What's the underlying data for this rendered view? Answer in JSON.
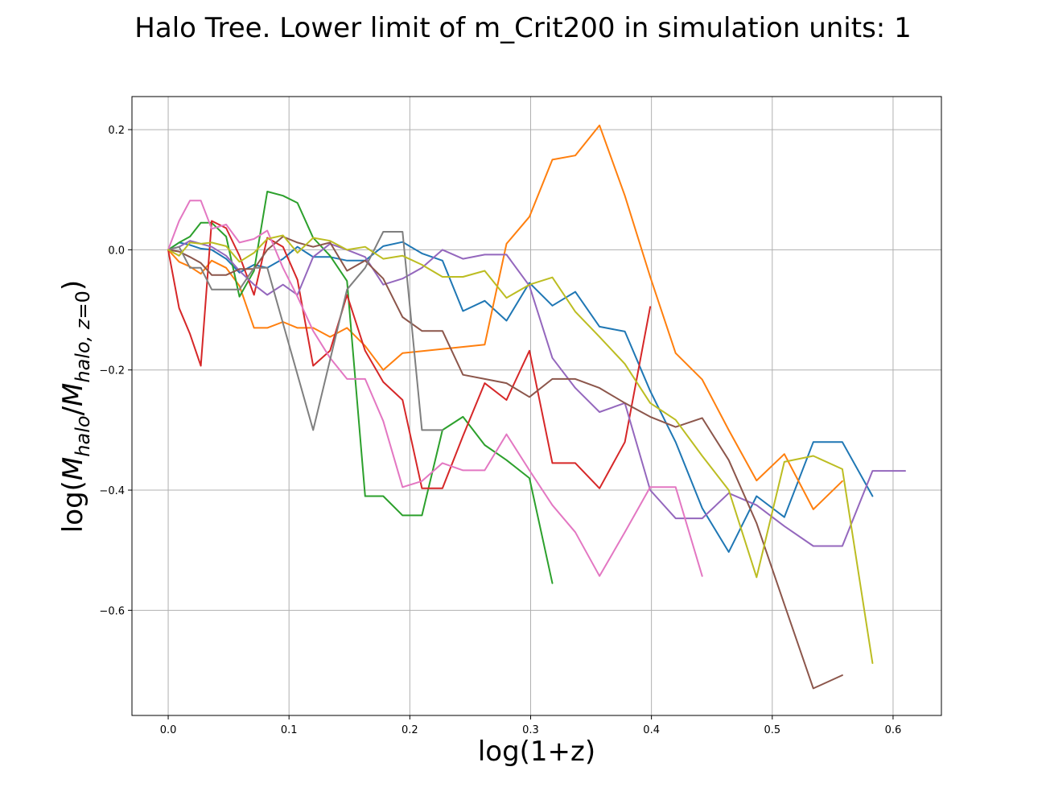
{
  "chart_data": {
    "type": "line",
    "title": "Halo Tree. Lower limit of m_Crit200 in simulation units: 1",
    "xlabel": "log(1+z)",
    "ylabel": "log(M_halo/M_halo,z=0)",
    "xlim": [
      -0.03,
      0.64
    ],
    "ylim": [
      -0.775,
      0.255
    ],
    "xticks": [
      0.0,
      0.1,
      0.2,
      0.3,
      0.4,
      0.5,
      0.6
    ],
    "xtick_labels": [
      "0.0",
      "0.1",
      "0.2",
      "0.3",
      "0.4",
      "0.5",
      "0.6"
    ],
    "yticks": [
      0.2,
      0.0,
      -0.2,
      -0.4,
      -0.6
    ],
    "ytick_labels": [
      "0.2",
      "0.0",
      "−0.2",
      "−0.4",
      "−0.6"
    ],
    "grid": true,
    "legend": "none",
    "series": [
      {
        "color": "#1f77b4",
        "points": [
          [
            0,
            0
          ],
          [
            0.009,
            0.012
          ],
          [
            0.018,
            0.008
          ],
          [
            0.027,
            0.002
          ],
          [
            0.036,
            0.0
          ],
          [
            0.048,
            -0.015
          ],
          [
            0.059,
            -0.038
          ],
          [
            0.071,
            -0.025
          ],
          [
            0.082,
            -0.03
          ],
          [
            0.095,
            -0.015
          ],
          [
            0.107,
            0.005
          ],
          [
            0.12,
            -0.012
          ],
          [
            0.134,
            -0.012
          ],
          [
            0.148,
            -0.018
          ],
          [
            0.163,
            -0.018
          ],
          [
            0.178,
            0.006
          ],
          [
            0.194,
            0.013
          ],
          [
            0.21,
            -0.006
          ],
          [
            0.227,
            -0.018
          ],
          [
            0.244,
            -0.102
          ],
          [
            0.262,
            -0.085
          ],
          [
            0.28,
            -0.118
          ],
          [
            0.299,
            -0.055
          ],
          [
            0.318,
            -0.093
          ],
          [
            0.337,
            -0.07
          ],
          [
            0.357,
            -0.128
          ],
          [
            0.378,
            -0.136
          ],
          [
            0.399,
            -0.235
          ],
          [
            0.42,
            -0.32
          ],
          [
            0.442,
            -0.43
          ],
          [
            0.464,
            -0.503
          ],
          [
            0.487,
            -0.41
          ],
          [
            0.51,
            -0.445
          ],
          [
            0.534,
            -0.32
          ],
          [
            0.558,
            -0.32
          ],
          [
            0.583,
            -0.41
          ]
        ]
      },
      {
        "color": "#ff7f0e",
        "points": [
          [
            0,
            0
          ],
          [
            0.009,
            -0.02
          ],
          [
            0.018,
            -0.028
          ],
          [
            0.027,
            -0.04
          ],
          [
            0.036,
            -0.018
          ],
          [
            0.048,
            -0.03
          ],
          [
            0.059,
            -0.06
          ],
          [
            0.071,
            -0.13
          ],
          [
            0.082,
            -0.13
          ],
          [
            0.095,
            -0.12
          ],
          [
            0.107,
            -0.13
          ],
          [
            0.12,
            -0.13
          ],
          [
            0.134,
            -0.145
          ],
          [
            0.148,
            -0.13
          ],
          [
            0.163,
            -0.16
          ],
          [
            0.178,
            -0.2
          ],
          [
            0.194,
            -0.172
          ],
          [
            0.262,
            -0.158
          ],
          [
            0.28,
            0.01
          ],
          [
            0.299,
            0.055
          ],
          [
            0.318,
            0.15
          ],
          [
            0.337,
            0.157
          ],
          [
            0.357,
            0.207
          ],
          [
            0.378,
            0.09
          ],
          [
            0.399,
            -0.045
          ],
          [
            0.42,
            -0.172
          ],
          [
            0.442,
            -0.216
          ],
          [
            0.464,
            -0.3
          ],
          [
            0.487,
            -0.384
          ],
          [
            0.51,
            -0.34
          ],
          [
            0.534,
            -0.432
          ],
          [
            0.558,
            -0.385
          ]
        ]
      },
      {
        "color": "#2ca02c",
        "points": [
          [
            0,
            0
          ],
          [
            0.009,
            0.012
          ],
          [
            0.018,
            0.022
          ],
          [
            0.027,
            0.045
          ],
          [
            0.036,
            0.045
          ],
          [
            0.048,
            0.022
          ],
          [
            0.059,
            -0.078
          ],
          [
            0.071,
            -0.035
          ],
          [
            0.082,
            0.097
          ],
          [
            0.095,
            0.09
          ],
          [
            0.107,
            0.078
          ],
          [
            0.12,
            0.02
          ],
          [
            0.134,
            -0.01
          ],
          [
            0.148,
            -0.052
          ],
          [
            0.163,
            -0.41
          ],
          [
            0.178,
            -0.41
          ],
          [
            0.194,
            -0.442
          ],
          [
            0.21,
            -0.442
          ],
          [
            0.227,
            -0.3
          ],
          [
            0.244,
            -0.278
          ],
          [
            0.262,
            -0.325
          ],
          [
            0.28,
            -0.35
          ],
          [
            0.299,
            -0.38
          ],
          [
            0.318,
            -0.555
          ]
        ]
      },
      {
        "color": "#d62728",
        "points": [
          [
            0,
            0
          ],
          [
            0.009,
            -0.097
          ],
          [
            0.018,
            -0.14
          ],
          [
            0.027,
            -0.193
          ],
          [
            0.036,
            0.048
          ],
          [
            0.048,
            0.036
          ],
          [
            0.059,
            -0.01
          ],
          [
            0.071,
            -0.075
          ],
          [
            0.082,
            0.02
          ],
          [
            0.095,
            0.005
          ],
          [
            0.107,
            -0.05
          ],
          [
            0.12,
            -0.193
          ],
          [
            0.134,
            -0.168
          ],
          [
            0.148,
            -0.075
          ],
          [
            0.163,
            -0.168
          ],
          [
            0.178,
            -0.22
          ],
          [
            0.194,
            -0.25
          ],
          [
            0.21,
            -0.397
          ],
          [
            0.227,
            -0.397
          ],
          [
            0.244,
            -0.31
          ],
          [
            0.262,
            -0.222
          ],
          [
            0.28,
            -0.25
          ],
          [
            0.299,
            -0.168
          ],
          [
            0.318,
            -0.355
          ],
          [
            0.337,
            -0.355
          ],
          [
            0.357,
            -0.397
          ],
          [
            0.378,
            -0.32
          ],
          [
            0.399,
            -0.095
          ]
        ]
      },
      {
        "color": "#9467bd",
        "points": [
          [
            0,
            0
          ],
          [
            0.009,
            0.005
          ],
          [
            0.018,
            0.015
          ],
          [
            0.027,
            0.01
          ],
          [
            0.036,
            0.005
          ],
          [
            0.048,
            -0.01
          ],
          [
            0.059,
            -0.035
          ],
          [
            0.071,
            -0.058
          ],
          [
            0.082,
            -0.075
          ],
          [
            0.095,
            -0.058
          ],
          [
            0.107,
            -0.075
          ],
          [
            0.12,
            -0.012
          ],
          [
            0.134,
            0.01
          ],
          [
            0.148,
            0.0
          ],
          [
            0.163,
            -0.012
          ],
          [
            0.178,
            -0.058
          ],
          [
            0.194,
            -0.048
          ],
          [
            0.21,
            -0.03
          ],
          [
            0.227,
            0.0
          ],
          [
            0.244,
            -0.015
          ],
          [
            0.262,
            -0.008
          ],
          [
            0.28,
            -0.008
          ],
          [
            0.299,
            -0.06
          ],
          [
            0.318,
            -0.18
          ],
          [
            0.337,
            -0.23
          ],
          [
            0.357,
            -0.27
          ],
          [
            0.378,
            -0.255
          ],
          [
            0.399,
            -0.4
          ],
          [
            0.42,
            -0.447
          ],
          [
            0.442,
            -0.447
          ],
          [
            0.464,
            -0.405
          ],
          [
            0.487,
            -0.425
          ],
          [
            0.51,
            -0.46
          ],
          [
            0.534,
            -0.493
          ],
          [
            0.558,
            -0.493
          ],
          [
            0.583,
            -0.368
          ],
          [
            0.61,
            -0.368
          ]
        ]
      },
      {
        "color": "#8c564b",
        "points": [
          [
            0,
            0
          ],
          [
            0.009,
            -0.003
          ],
          [
            0.018,
            -0.012
          ],
          [
            0.027,
            -0.022
          ],
          [
            0.036,
            -0.042
          ],
          [
            0.048,
            -0.042
          ],
          [
            0.059,
            -0.032
          ],
          [
            0.071,
            -0.032
          ],
          [
            0.082,
            0.0
          ],
          [
            0.095,
            0.022
          ],
          [
            0.107,
            0.012
          ],
          [
            0.12,
            0.005
          ],
          [
            0.134,
            0.012
          ],
          [
            0.148,
            -0.035
          ],
          [
            0.163,
            -0.018
          ],
          [
            0.178,
            -0.048
          ],
          [
            0.194,
            -0.112
          ],
          [
            0.21,
            -0.135
          ],
          [
            0.227,
            -0.135
          ],
          [
            0.244,
            -0.208
          ],
          [
            0.262,
            -0.215
          ],
          [
            0.28,
            -0.222
          ],
          [
            0.299,
            -0.245
          ],
          [
            0.318,
            -0.215
          ],
          [
            0.337,
            -0.215
          ],
          [
            0.357,
            -0.23
          ],
          [
            0.378,
            -0.255
          ],
          [
            0.399,
            -0.278
          ],
          [
            0.42,
            -0.295
          ],
          [
            0.442,
            -0.28
          ],
          [
            0.464,
            -0.35
          ],
          [
            0.487,
            -0.455
          ],
          [
            0.51,
            -0.59
          ],
          [
            0.534,
            -0.73
          ],
          [
            0.558,
            -0.708
          ]
        ]
      },
      {
        "color": "#e377c2",
        "points": [
          [
            0,
            0
          ],
          [
            0.009,
            0.048
          ],
          [
            0.018,
            0.082
          ],
          [
            0.027,
            0.082
          ],
          [
            0.036,
            0.035
          ],
          [
            0.048,
            0.042
          ],
          [
            0.059,
            0.012
          ],
          [
            0.071,
            0.018
          ],
          [
            0.082,
            0.032
          ],
          [
            0.095,
            -0.03
          ],
          [
            0.107,
            -0.078
          ],
          [
            0.12,
            -0.135
          ],
          [
            0.134,
            -0.18
          ],
          [
            0.148,
            -0.215
          ],
          [
            0.163,
            -0.215
          ],
          [
            0.178,
            -0.285
          ],
          [
            0.194,
            -0.395
          ],
          [
            0.21,
            -0.385
          ],
          [
            0.227,
            -0.355
          ],
          [
            0.244,
            -0.367
          ],
          [
            0.262,
            -0.367
          ],
          [
            0.28,
            -0.307
          ],
          [
            0.299,
            -0.367
          ],
          [
            0.318,
            -0.425
          ],
          [
            0.337,
            -0.47
          ],
          [
            0.357,
            -0.543
          ],
          [
            0.378,
            -0.47
          ],
          [
            0.399,
            -0.395
          ],
          [
            0.42,
            -0.395
          ],
          [
            0.442,
            -0.543
          ]
        ]
      },
      {
        "color": "#7f7f7f",
        "points": [
          [
            0,
            0
          ],
          [
            0.009,
            0.005
          ],
          [
            0.018,
            -0.03
          ],
          [
            0.027,
            -0.03
          ],
          [
            0.036,
            -0.066
          ],
          [
            0.048,
            -0.066
          ],
          [
            0.059,
            -0.066
          ],
          [
            0.071,
            -0.03
          ],
          [
            0.082,
            -0.03
          ],
          [
            0.12,
            -0.3
          ],
          [
            0.148,
            -0.066
          ],
          [
            0.163,
            -0.03
          ],
          [
            0.178,
            0.03
          ],
          [
            0.194,
            0.03
          ],
          [
            0.21,
            -0.3
          ],
          [
            0.227,
            -0.3
          ]
        ]
      },
      {
        "color": "#bcbd22",
        "points": [
          [
            0,
            0
          ],
          [
            0.009,
            -0.01
          ],
          [
            0.018,
            0.012
          ],
          [
            0.027,
            0.01
          ],
          [
            0.036,
            0.012
          ],
          [
            0.048,
            0.006
          ],
          [
            0.059,
            -0.02
          ],
          [
            0.071,
            -0.005
          ],
          [
            0.082,
            0.018
          ],
          [
            0.095,
            0.024
          ],
          [
            0.107,
            -0.005
          ],
          [
            0.12,
            0.02
          ],
          [
            0.134,
            0.015
          ],
          [
            0.148,
            0.0
          ],
          [
            0.163,
            0.005
          ],
          [
            0.178,
            -0.015
          ],
          [
            0.194,
            -0.01
          ],
          [
            0.21,
            -0.025
          ],
          [
            0.227,
            -0.045
          ],
          [
            0.244,
            -0.045
          ],
          [
            0.262,
            -0.035
          ],
          [
            0.28,
            -0.08
          ],
          [
            0.299,
            -0.058
          ],
          [
            0.318,
            -0.046
          ],
          [
            0.337,
            -0.103
          ],
          [
            0.357,
            -0.145
          ],
          [
            0.378,
            -0.19
          ],
          [
            0.399,
            -0.255
          ],
          [
            0.42,
            -0.283
          ],
          [
            0.442,
            -0.343
          ],
          [
            0.464,
            -0.4
          ],
          [
            0.487,
            -0.545
          ],
          [
            0.51,
            -0.353
          ],
          [
            0.534,
            -0.343
          ],
          [
            0.558,
            -0.365
          ],
          [
            0.583,
            -0.688
          ]
        ]
      }
    ]
  }
}
